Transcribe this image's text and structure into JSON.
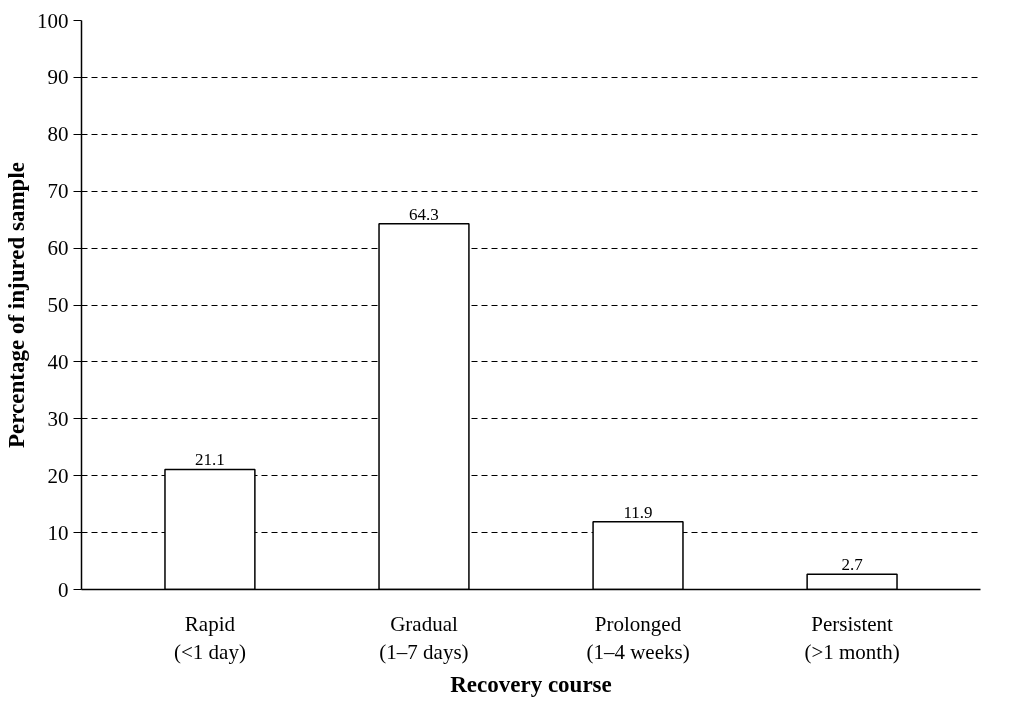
{
  "chart_data": {
    "type": "bar",
    "xlabel": "Recovery course",
    "ylabel": "Percentage of injured sample",
    "categories": [
      "Rapid\n(<1 day)",
      "Gradual\n(1–7 days)",
      "Prolonged\n(1–4 weeks)",
      "Persistent\n(>1 month)"
    ],
    "values": [
      21.1,
      64.3,
      11.9,
      2.7
    ],
    "color": "#ffffff",
    "ylim": [
      0,
      100
    ],
    "yticks": [
      0,
      10,
      20,
      30,
      40,
      50,
      60,
      70,
      80,
      90,
      100
    ],
    "grid": "y",
    "data_labels": true
  }
}
